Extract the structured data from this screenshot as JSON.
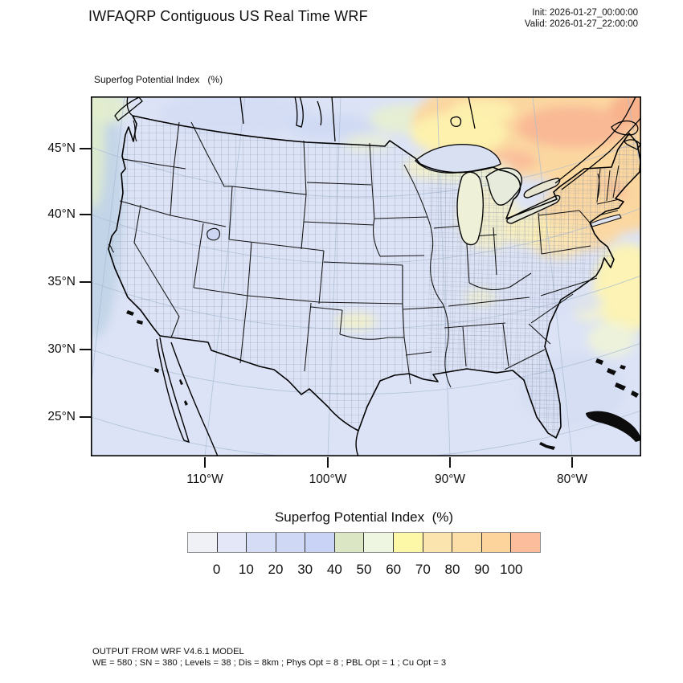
{
  "header": {
    "title": "IWFAQRP Contiguous US Real Time WRF",
    "init": "Init: 2026-01-27_00:00:00",
    "valid": "Valid: 2026-01-27_22:00:00"
  },
  "map": {
    "subtitle": "Superfog Potential Index   (%)",
    "lat_labels": [
      "45°N",
      "40°N",
      "35°N",
      "30°N",
      "25°N"
    ],
    "lon_labels": [
      "110°W",
      "100°W",
      "90°W",
      "80°W"
    ]
  },
  "colorbar": {
    "title": "Superfog Potential Index  (%)",
    "tick_labels": [
      "0",
      "10",
      "20",
      "30",
      "40",
      "50",
      "60",
      "70",
      "80",
      "90",
      "100"
    ],
    "cell_colors": [
      "#eff1f7",
      "#e3e7f8",
      "#d4dcf6",
      "#cfd8f5",
      "#c9d3f5",
      "#dae6c4",
      "#eef5e0",
      "#fdf8a8",
      "#fce4ae",
      "#fcdfa6",
      "#fcd49c",
      "#fcbd9d"
    ]
  },
  "footer": {
    "line1": "OUTPUT FROM WRF V4.6.1 MODEL",
    "line2": "WE = 580 ; SN = 380 ; Levels = 38 ; Dis = 8km ; Phys Opt = 8 ; PBL Opt = 1 ; Cu Opt = 3"
  },
  "chart_data": {
    "type": "heatmap",
    "title": "Superfog Potential Index (%)",
    "colorbar_ticks": [
      0,
      10,
      20,
      30,
      40,
      50,
      60,
      70,
      80,
      90,
      100
    ],
    "lat_ticks_deg_n": [
      45,
      40,
      35,
      30,
      25
    ],
    "lon_ticks_deg_w": [
      110,
      100,
      90,
      80
    ],
    "field_summary": "Mostly 0-30% (pale blue) across CONUS; 40-100% (yellow/orange/salmon) over southeastern Canada, the Great Lakes, New York / New England and the offshore northwest Atlantic; scattered 40-60% patches in Oklahoma and the Ohio valley"
  }
}
